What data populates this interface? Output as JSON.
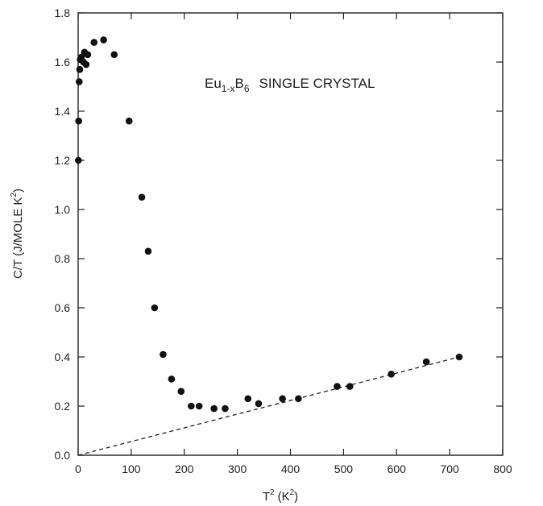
{
  "chart_data": {
    "type": "scatter",
    "title": "Eu",
    "title_sub": "1-x",
    "title_mid": "B",
    "title_sub2": "6",
    "title_rest": "SINGLE CRYSTAL",
    "xlabel_main": "T",
    "xlabel_sup": "2",
    "xlabel_unit": "(K",
    "xlabel_unit_sup": "2",
    "xlabel_close": ")",
    "ylabel_main": "C/T (J/MOLE K",
    "ylabel_sup": "2",
    "ylabel_close": ")",
    "xlim": [
      0,
      800
    ],
    "ylim": [
      0.0,
      1.8
    ],
    "x_ticks": [
      "0",
      "100",
      "200",
      "300",
      "400",
      "500",
      "600",
      "700",
      "800"
    ],
    "y_ticks": [
      "0.0",
      "0.2",
      "0.4",
      "0.6",
      "0.8",
      "1.0",
      "1.2",
      "1.4",
      "1.6",
      "1.8"
    ],
    "grid": false,
    "series": [
      {
        "color": "#111111",
        "points": [
          [
            0.5,
            1.2
          ],
          [
            1,
            1.36
          ],
          [
            2,
            1.52
          ],
          [
            3,
            1.57
          ],
          [
            4,
            1.61
          ],
          [
            6,
            1.62
          ],
          [
            10,
            1.6
          ],
          [
            12,
            1.64
          ],
          [
            15,
            1.59
          ],
          [
            18,
            1.63
          ],
          [
            30,
            1.68
          ],
          [
            48,
            1.69
          ],
          [
            68,
            1.63
          ],
          [
            96,
            1.36
          ],
          [
            120,
            1.05
          ],
          [
            132,
            0.83
          ],
          [
            144,
            0.6
          ],
          [
            160,
            0.41
          ],
          [
            176,
            0.31
          ],
          [
            194,
            0.26
          ],
          [
            213,
            0.2
          ],
          [
            228,
            0.2
          ],
          [
            256,
            0.19
          ],
          [
            277,
            0.19
          ],
          [
            320,
            0.23
          ],
          [
            340,
            0.21
          ],
          [
            385,
            0.23
          ],
          [
            415,
            0.23
          ],
          [
            488,
            0.28
          ],
          [
            512,
            0.28
          ],
          [
            590,
            0.33
          ],
          [
            656,
            0.38
          ],
          [
            718,
            0.4
          ]
        ]
      }
    ],
    "fit_line": {
      "style": "dashed",
      "x": [
        0,
        718
      ],
      "y": [
        0.0,
        0.4
      ]
    }
  }
}
